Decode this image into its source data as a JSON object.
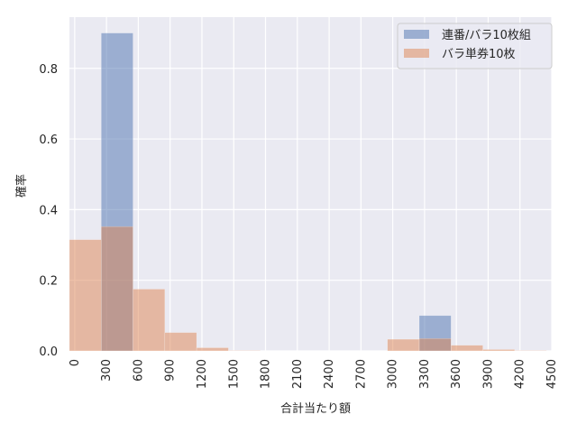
{
  "chart_data": {
    "type": "bar",
    "xlabel": "合計当たり額",
    "ylabel": "確率",
    "xlim": [
      -50,
      4500
    ],
    "ylim": [
      0,
      0.945
    ],
    "x_ticks": [
      "0",
      "300",
      "600",
      "900",
      "1200",
      "1500",
      "1800",
      "2100",
      "2400",
      "2700",
      "3000",
      "3300",
      "3600",
      "3900",
      "4200",
      "4500"
    ],
    "y_ticks": [
      "0.0",
      "0.2",
      "0.4",
      "0.6",
      "0.8"
    ],
    "grid": true,
    "legend_position": "top-right",
    "bin_width": 300,
    "series": [
      {
        "name": "連番/バラ10枚組",
        "color": "#4c72b0",
        "opacity": 0.5,
        "bins": [
          {
            "x": 250,
            "value": 0.9
          },
          {
            "x": 3250,
            "value": 0.1
          }
        ]
      },
      {
        "name": "バラ単券10枚",
        "color": "#dd8452",
        "opacity": 0.5,
        "bins": [
          {
            "x": -50,
            "value": 0.315
          },
          {
            "x": 250,
            "value": 0.352
          },
          {
            "x": 550,
            "value": 0.175
          },
          {
            "x": 850,
            "value": 0.052
          },
          {
            "x": 1150,
            "value": 0.009
          },
          {
            "x": 1450,
            "value": 0.001
          },
          {
            "x": 2950,
            "value": 0.033
          },
          {
            "x": 3250,
            "value": 0.035
          },
          {
            "x": 3550,
            "value": 0.016
          },
          {
            "x": 3850,
            "value": 0.004
          },
          {
            "x": 4150,
            "value": 0.001
          }
        ]
      }
    ]
  }
}
